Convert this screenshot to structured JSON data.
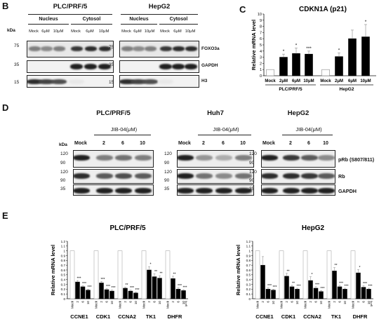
{
  "panels": {
    "B": {
      "letter": "B",
      "left": {
        "title": "PLC/PRF/5",
        "groups": [
          "Nucleus",
          "Cytosol"
        ],
        "lanes": [
          "Mock",
          "6μM",
          "10μM",
          "Mock",
          "6μM",
          "10μM"
        ]
      },
      "right": {
        "title": "HepG2",
        "groups": [
          "Nucleus",
          "Cytosol"
        ],
        "lanes": [
          "Mock",
          "6μM",
          "10μM",
          "Mock",
          "6μM",
          "10μM"
        ]
      },
      "kda_label": "kDa",
      "markers_left": [
        "75",
        "35",
        "15"
      ],
      "markers_right": [
        "75",
        "35",
        "15"
      ],
      "blot_labels": [
        "FOXO3a",
        "GAPDH",
        "H3"
      ]
    },
    "C": {
      "letter": "C",
      "title": "CDKN1A (p21)",
      "ylabel": "Relative mRNA level",
      "yticks": [
        "0",
        "1",
        "2",
        "3",
        "4",
        "5",
        "6",
        "7",
        "8",
        "9",
        "10"
      ],
      "xlabels": [
        "Mock",
        "2μM",
        "6μM",
        "10μM",
        "Mock",
        "2μM",
        "6μM",
        "10μM"
      ],
      "group_labels": [
        "PLC/PRF/5",
        "HepG2"
      ]
    },
    "D": {
      "letter": "D",
      "titles": [
        "PLC/PRF/5",
        "Huh7",
        "HepG2"
      ],
      "treatment": "JIB-04(μM)",
      "lanes": [
        "Mock",
        "2",
        "6",
        "10"
      ],
      "kda_label": "kDa",
      "markers": [
        "120",
        "90",
        "120",
        "90",
        "35"
      ],
      "blot_labels": [
        "pRb (S807/811)",
        "Rb",
        "GAPDH"
      ]
    },
    "E": {
      "letter": "E",
      "ylabel": "Relative mRNA level",
      "genes": [
        "CCNE1",
        "CDK1",
        "CCNA2",
        "TK1",
        "DHFR"
      ],
      "lane_labels": [
        "Mock",
        "2",
        "6",
        "10"
      ],
      "unit": "(μM)",
      "yticks": [
        "0",
        "0.1",
        "0.2",
        "0.3",
        "0.4",
        "0.5",
        "0.6",
        "0.7",
        "0.8",
        "0.9",
        "1",
        "1.1",
        "1.2"
      ]
    }
  },
  "chart_data": [
    {
      "type": "bar",
      "title": "CDKN1A (p21)",
      "ylabel": "Relative mRNA level",
      "ylim": [
        0,
        10
      ],
      "categories": [
        "Mock",
        "2μM",
        "6μM",
        "10μM",
        "Mock",
        "2μM",
        "6μM",
        "10μM"
      ],
      "groups": [
        "PLC/PRF/5",
        "HepG2"
      ],
      "values": [
        1.0,
        3.0,
        3.6,
        3.5,
        1.0,
        3.1,
        6.0,
        6.3
      ],
      "errors": [
        0.0,
        0.5,
        0.9,
        0.5,
        0.0,
        0.6,
        1.4,
        2.0
      ],
      "significance": [
        "",
        "*",
        "*",
        "***",
        "",
        "*",
        "",
        "*"
      ]
    },
    {
      "type": "bar",
      "title": "PLC/PRF/5",
      "ylabel": "Relative mRNA level",
      "ylim": [
        0,
        1.2
      ],
      "categories": [
        "CCNE1",
        "CDK1",
        "CCNA2",
        "TK1",
        "DHFR"
      ],
      "series": [
        {
          "name": "Mock",
          "values": [
            1.0,
            1.0,
            1.0,
            1.0,
            1.0
          ]
        },
        {
          "name": "2",
          "values": [
            0.35,
            0.33,
            0.22,
            0.6,
            0.42
          ]
        },
        {
          "name": "6",
          "values": [
            0.25,
            0.19,
            0.16,
            0.46,
            0.2
          ]
        },
        {
          "name": "10",
          "values": [
            0.18,
            0.16,
            0.12,
            0.43,
            0.17
          ]
        }
      ],
      "errors": [
        [
          0,
          0,
          0,
          0,
          0
        ],
        [
          0.03,
          0.03,
          0.02,
          0.07,
          0.05
        ],
        [
          0.02,
          0.02,
          0.02,
          0.06,
          0.03
        ],
        [
          0.02,
          0.02,
          0.02,
          0.05,
          0.02
        ]
      ],
      "significance": [
        [
          "",
          "",
          "",
          "",
          ""
        ],
        [
          "***",
          "***",
          "**",
          "*",
          "**"
        ],
        [
          "***",
          "***",
          "***",
          "**",
          "***"
        ],
        [
          "***",
          "***",
          "***",
          "**",
          "***"
        ]
      ]
    },
    {
      "type": "bar",
      "title": "HepG2",
      "ylabel": "Relative mRNA level",
      "ylim": [
        0,
        1.2
      ],
      "categories": [
        "CCNE1",
        "CDK1",
        "CCNA2",
        "TK1",
        "DHFR"
      ],
      "series": [
        {
          "name": "Mock",
          "values": [
            1.0,
            1.0,
            1.0,
            1.0,
            1.0
          ]
        },
        {
          "name": "2",
          "values": [
            0.7,
            0.47,
            0.38,
            0.58,
            0.54
          ]
        },
        {
          "name": "6",
          "values": [
            0.2,
            0.25,
            0.22,
            0.25,
            0.24
          ]
        },
        {
          "name": "10",
          "values": [
            0.18,
            0.2,
            0.15,
            0.2,
            0.2
          ]
        }
      ],
      "errors": [
        [
          0,
          0,
          0,
          0,
          0
        ],
        [
          0.18,
          0.06,
          0.08,
          0.07,
          0.07
        ],
        [
          0.03,
          0.03,
          0.03,
          0.03,
          0.03
        ],
        [
          0.02,
          0.02,
          0.02,
          0.02,
          0.02
        ]
      ],
      "significance": [
        [
          "",
          "",
          "",
          "",
          ""
        ],
        [
          "",
          "**",
          "*",
          "**",
          "*"
        ],
        [
          "***",
          "**",
          "***",
          "***",
          "***"
        ],
        [
          "***",
          "***",
          "***",
          "***",
          "***"
        ]
      ]
    }
  ]
}
